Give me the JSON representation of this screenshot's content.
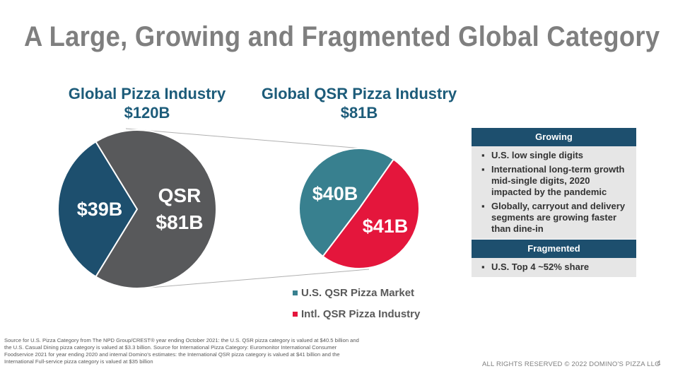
{
  "title": "A Large, Growing and Fragmented Global Category",
  "colors": {
    "title_gray": "#7f7f7f",
    "heading_blue": "#1d5c7a",
    "dark_navy": "#1d4f6e",
    "dark_gray": "#58595b",
    "teal": "#38808f",
    "red": "#e4163c"
  },
  "chart_data": [
    {
      "type": "pie",
      "title": "Global Pizza Industry",
      "subtitle": "$120B",
      "slices": [
        {
          "label": "$39B",
          "value": 39,
          "color": "#1d4f6e"
        },
        {
          "label": "QSR",
          "sublabel": "$81B",
          "value": 81,
          "color": "#58595b"
        }
      ]
    },
    {
      "type": "pie",
      "title": "Global QSR Pizza Industry",
      "subtitle": "$81B",
      "slices": [
        {
          "label": "$40B",
          "value": 40,
          "color": "#38808f",
          "legend": "U.S. QSR Pizza Market"
        },
        {
          "label": "$41B",
          "value": 41,
          "color": "#e4163c",
          "legend": "Intl. QSR Pizza Industry"
        }
      ]
    }
  ],
  "legend": [
    {
      "label": "U.S. QSR Pizza Market",
      "color": "#38808f"
    },
    {
      "label": "Intl. QSR Pizza Industry",
      "color": "#e4163c"
    }
  ],
  "growing": {
    "header": "Growing",
    "items": [
      "U.S. low single digits",
      "International long-term growth mid-single digits, 2020 impacted by the pandemic",
      "Globally, carryout and delivery segments are growing faster than dine-in"
    ]
  },
  "fragmented": {
    "header": "Fragmented",
    "items": [
      "U.S. Top 4 ~52% share"
    ]
  },
  "bullet": "▪",
  "source": "Source for U.S. Pizza Category from The NPD Group/CREST®  year ending October 2021: the U.S. QSR pizza category is valued at $40.5 billion and the U.S. Casual Dining pizza category is valued at $3.3 billion. Source for International Pizza Category: Euromonitor International Consumer Foodservice 2021 for year ending 2020 and internal Domino's estimates: the International QSR pizza category is valued at $41 billion and the International Full-service pizza category is valued at $35 billion",
  "footer": "ALL RIGHTS RESERVED © 2022 DOMINO'S PIZZA LLC",
  "page_number": "4"
}
